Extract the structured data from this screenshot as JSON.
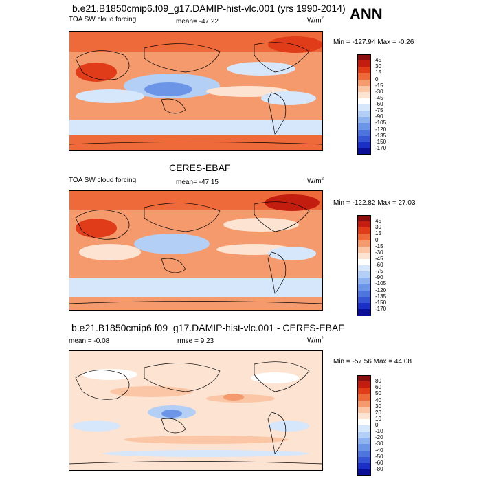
{
  "header": {
    "main_title": "b.e21.B1850cmip6.f09_g17.DAMIP-hist-vlc.001 (yrs 1990-2014)",
    "season": "ANN"
  },
  "panels": [
    {
      "id": "model",
      "left_label": "TOA SW cloud forcing",
      "center_label": "mean= -47.22",
      "units": "W/m",
      "units_sup": "2",
      "minmax": "Min = -127.94 Max =  -0.26",
      "colorbar_ticks": [
        "45",
        "30",
        "15",
        "0",
        "-15",
        "-30",
        "-45",
        "-60",
        "-75",
        "-90",
        "-105",
        "-120",
        "-135",
        "-150",
        "-170"
      ]
    },
    {
      "id": "obs",
      "title": "CERES-EBAF",
      "left_label": "TOA SW cloud forcing",
      "center_label": "mean= -47.15",
      "units": "W/m",
      "units_sup": "2",
      "minmax": "Min = -122.82 Max =  27.03",
      "colorbar_ticks": [
        "45",
        "30",
        "15",
        "0",
        "-15",
        "-30",
        "-45",
        "-60",
        "-75",
        "-90",
        "-105",
        "-120",
        "-135",
        "-150",
        "-170"
      ]
    },
    {
      "id": "diff",
      "title": "b.e21.B1850cmip6.f09_g17.DAMIP-hist-vlc.001 - CERES-EBAF",
      "left_label": "mean =  -0.08",
      "center_label": "rmse =  9.23",
      "units": "W/m",
      "units_sup": "2",
      "minmax": "Min = -57.56 Max =  44.08",
      "colorbar_ticks": [
        "80",
        "60",
        "50",
        "40",
        "30",
        "20",
        "10",
        "0",
        "-10",
        "-20",
        "-30",
        "-40",
        "-50",
        "-60",
        "-80"
      ]
    }
  ],
  "colors": {
    "forcing_scale": [
      "#8c0f0f",
      "#c21d0f",
      "#e03c1a",
      "#ef6a3a",
      "#f59a6d",
      "#fbc6a5",
      "#fde3d2",
      "#ffffff",
      "#d6e6fb",
      "#b3cff5",
      "#8eb3ee",
      "#6c95e8",
      "#4e75de",
      "#3555d4",
      "#1c2fc4",
      "#0a0f96"
    ],
    "diff_scale": [
      "#8c0f0f",
      "#c21d0f",
      "#e03c1a",
      "#ef6a3a",
      "#f59a6d",
      "#fbc6a5",
      "#fde3d2",
      "#ffffff",
      "#d6e6fb",
      "#b3cff5",
      "#8eb3ee",
      "#6c95e8",
      "#4e75de",
      "#3555d4",
      "#1c2fc4",
      "#0a0f96"
    ]
  }
}
